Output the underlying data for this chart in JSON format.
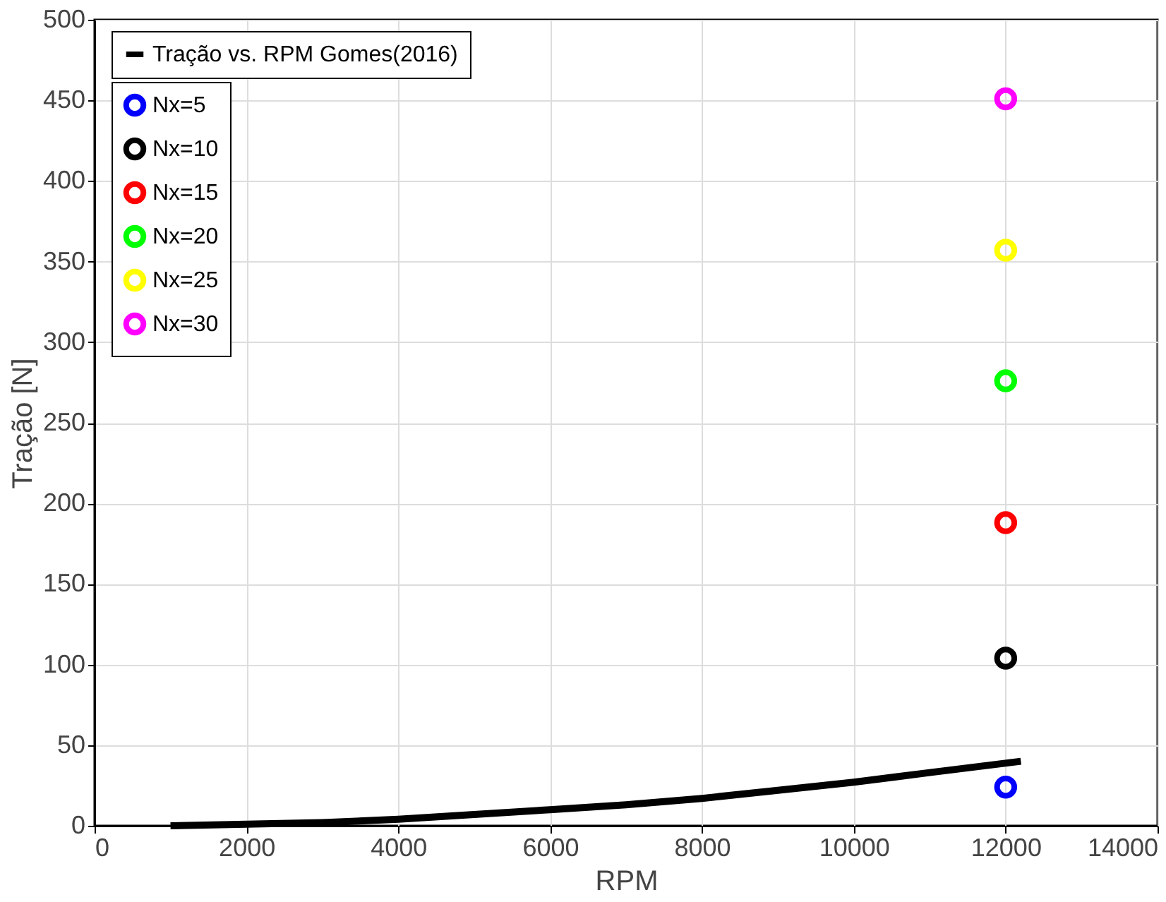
{
  "chart_data": {
    "type": "scatter",
    "xlabel": "RPM",
    "ylabel": "Tração [N]",
    "xlim": [
      0,
      14000
    ],
    "xticks": [
      0,
      2000,
      4000,
      6000,
      8000,
      10000,
      12000,
      14000
    ],
    "ylim": [
      0,
      500
    ],
    "yticks": [
      0,
      50,
      100,
      150,
      200,
      250,
      300,
      350,
      400,
      450,
      500
    ],
    "grid": true,
    "legend": "top left",
    "marker": "circle",
    "series": [
      {
        "name": "Tração vs. RPM Gomes(2016)",
        "type": "line",
        "marker": "none",
        "color": "#000000",
        "x": [
          1000,
          2000,
          3000,
          4000,
          5000,
          6000,
          7000,
          8000,
          9000,
          10000,
          11000,
          12200
        ],
        "values": [
          0,
          1,
          2,
          4,
          7,
          10,
          13,
          17,
          22,
          27,
          33,
          40
        ]
      },
      {
        "name": "Nx=5",
        "color": "#0000ff",
        "x": [
          12000
        ],
        "values": [
          24
        ]
      },
      {
        "name": "Nx=10",
        "color": "#000000",
        "x": [
          12000
        ],
        "values": [
          104
        ]
      },
      {
        "name": "Nx=15",
        "color": "#ff0000",
        "x": [
          12000
        ],
        "values": [
          188
        ]
      },
      {
        "name": "Nx=20",
        "color": "#00ff00",
        "x": [
          12000
        ],
        "values": [
          276
        ]
      },
      {
        "name": "Nx=25",
        "color": "#ffff00",
        "x": [
          12000
        ],
        "values": [
          357
        ]
      },
      {
        "name": "Nx=30",
        "color": "#ff00ff",
        "x": [
          12000
        ],
        "values": [
          451
        ]
      }
    ]
  }
}
